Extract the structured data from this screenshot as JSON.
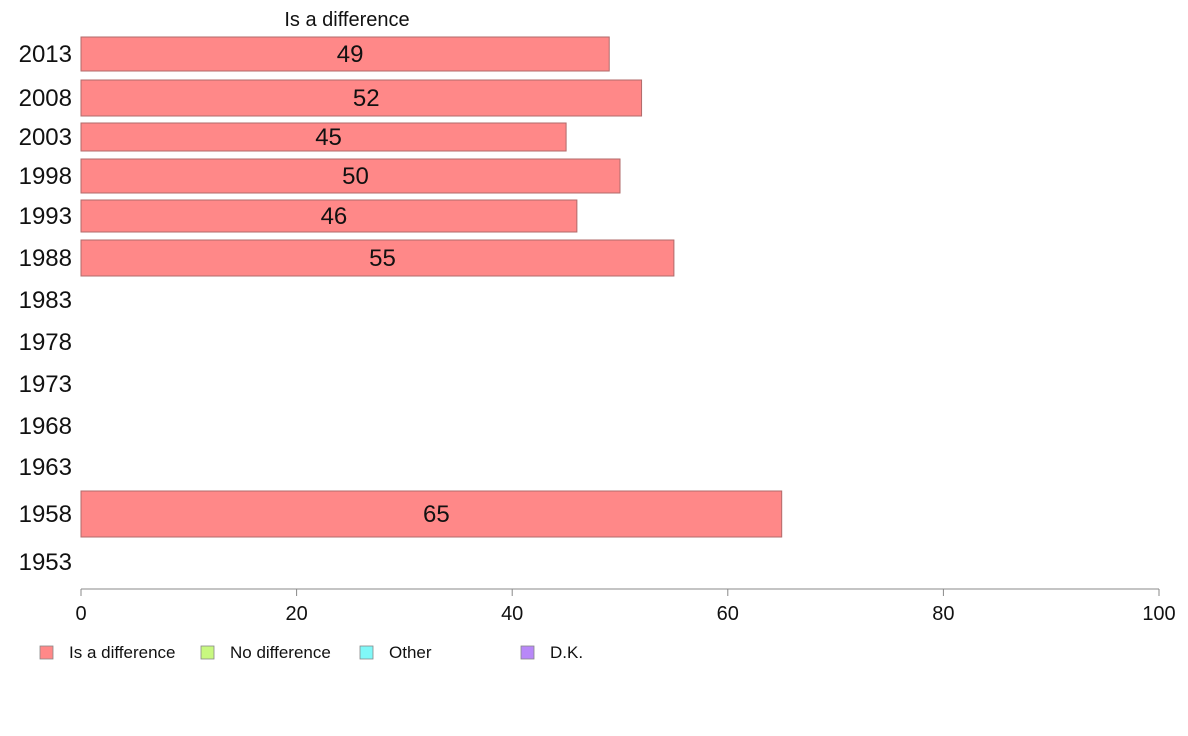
{
  "chart_data": {
    "type": "bar",
    "orientation": "horizontal",
    "title": "Is a difference",
    "categories": [
      "2013",
      "2008",
      "2003",
      "1998",
      "1993",
      "1988",
      "1983",
      "1978",
      "1973",
      "1968",
      "1963",
      "1958",
      "1953"
    ],
    "series": [
      {
        "name": "Is a difference",
        "color": "#ff8888",
        "values": [
          49,
          52,
          45,
          50,
          46,
          55,
          null,
          null,
          null,
          null,
          null,
          65,
          null
        ]
      }
    ],
    "data_labels": [
      "49",
      "52",
      "45",
      "50",
      "46",
      "55",
      "",
      "",
      "",
      "",
      "",
      "65",
      ""
    ],
    "xlim": [
      0,
      100
    ],
    "xticks": [
      "0",
      "20",
      "40",
      "60",
      "80",
      "100"
    ],
    "grid": false,
    "legend": {
      "placement": "bottom-left",
      "entries": [
        {
          "label": "Is a difference",
          "color": "#ff8888"
        },
        {
          "label": "No difference",
          "color": "#c8f880"
        },
        {
          "label": "Other",
          "color": "#80f8f8"
        },
        {
          "label": "D.K.",
          "color": "#b888f8"
        }
      ]
    }
  }
}
